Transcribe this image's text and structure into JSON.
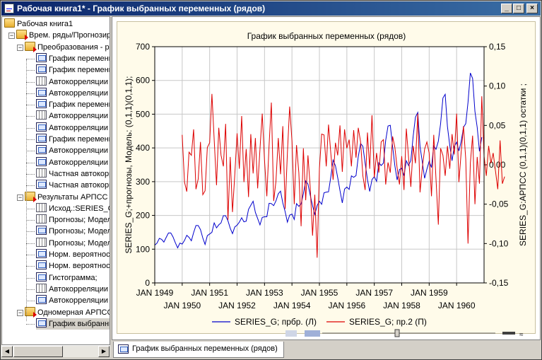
{
  "window": {
    "title": "Рабочая книга1* - График выбранных переменных (рядов)",
    "buttons": {
      "minimize": "_",
      "maximize": "□",
      "close": "×"
    }
  },
  "tree": {
    "items": [
      {
        "label": "Рабочая книга1",
        "icon": "folder-open-icon",
        "level": 0
      },
      {
        "label": "Врем. ряды/Прогнозирование",
        "icon": "folder-arrow-icon",
        "level": 1,
        "expander": "−"
      },
      {
        "label": "Преобразования - ряды",
        "icon": "folder-arrow-icon",
        "level": 2,
        "expander": "−"
      },
      {
        "label": "График переменных",
        "icon": "graph-icon",
        "level": 3
      },
      {
        "label": "График переменных",
        "icon": "graph-icon",
        "level": 3
      },
      {
        "label": "Автокорреляции",
        "icon": "table-icon",
        "level": 3
      },
      {
        "label": "Автокорреляции",
        "icon": "graph-icon",
        "level": 3
      },
      {
        "label": "График переменных",
        "icon": "graph-icon",
        "level": 3
      },
      {
        "label": "Автокорреляции",
        "icon": "table-icon",
        "level": 3
      },
      {
        "label": "Автокорреляции",
        "icon": "graph-icon",
        "level": 3
      },
      {
        "label": "График переменных",
        "icon": "graph-icon",
        "level": 3
      },
      {
        "label": "Автокорреляции",
        "icon": "graph-icon",
        "level": 3
      },
      {
        "label": "Автокорреляции",
        "icon": "graph-icon",
        "level": 3
      },
      {
        "label": "Частная автокорреляция",
        "icon": "table-icon",
        "level": 3
      },
      {
        "label": "Частная автокорреляция",
        "icon": "graph-icon",
        "level": 3
      },
      {
        "label": "Результаты АРПСС",
        "icon": "folder-arrow-icon",
        "level": 2,
        "expander": "−"
      },
      {
        "label": "Исход.:SERIES_G",
        "icon": "table-icon",
        "level": 3
      },
      {
        "label": "Прогнозы; Модель",
        "icon": "table-icon",
        "level": 3
      },
      {
        "label": "Прогнозы; Модель",
        "icon": "graph-icon",
        "level": 3
      },
      {
        "label": "Прогнозы; Модель",
        "icon": "table-icon",
        "level": 3
      },
      {
        "label": "Норм. вероятность",
        "icon": "graph-icon",
        "level": 3
      },
      {
        "label": "Норм. вероятность",
        "icon": "graph-icon",
        "level": 3
      },
      {
        "label": "Гистограмма;",
        "icon": "graph-icon",
        "level": 3
      },
      {
        "label": "Автокорреляции",
        "icon": "table-icon",
        "level": 3
      },
      {
        "label": "Автокорреляции",
        "icon": "graph-icon",
        "level": 3
      },
      {
        "label": "Одномерная АРПСС",
        "icon": "folder-arrow-icon",
        "level": 2,
        "expander": "−"
      },
      {
        "label": "График выбранных",
        "icon": "graph-icon",
        "level": 3,
        "selected": true
      }
    ]
  },
  "tab": {
    "label": "График выбранных переменных (рядов)"
  },
  "chart_data": {
    "type": "line",
    "title": "График выбранных переменных (рядов)",
    "ylabel_left": "SERIES_G;+прогнозы, Модель: (0,1,1)(0,1,1);",
    "ylabel_right": "SERIES_G:АРПСС (0,1,1)(0,1,1) остатки ;",
    "ylim_left": [
      0,
      700
    ],
    "yticks_left": [
      "0",
      "100",
      "200",
      "300",
      "400",
      "500",
      "600",
      "700"
    ],
    "ylim_right": [
      -0.15,
      0.15
    ],
    "yticks_right": [
      "-0,15",
      "-0,10",
      "-0,05",
      "0,00",
      "0,05",
      "0,10",
      "0,15"
    ],
    "x_range": [
      1949.0,
      1961.0
    ],
    "xticks_top_row": [
      "JAN 1949",
      "JAN 1951",
      "JAN 1953",
      "JAN 1955",
      "JAN 1957",
      "JAN 1959"
    ],
    "xticks_bottom_row": [
      "JAN 1950",
      "JAN 1952",
      "JAN 1954",
      "JAN 1956",
      "JAN 1958",
      "JAN 1960"
    ],
    "grid": true,
    "legend_placement": "bottom",
    "series": [
      {
        "name": "SERIES_G; прбр. (Л)",
        "axis": "left",
        "color": "#0000cc",
        "start": 1949.0,
        "step_months": 1,
        "values": [
          112,
          118,
          132,
          129,
          121,
          135,
          148,
          148,
          136,
          119,
          104,
          118,
          115,
          126,
          141,
          135,
          125,
          149,
          170,
          170,
          158,
          133,
          114,
          140,
          145,
          150,
          178,
          163,
          172,
          178,
          199,
          199,
          184,
          162,
          146,
          166,
          171,
          180,
          193,
          181,
          183,
          218,
          230,
          242,
          209,
          191,
          172,
          194,
          196,
          196,
          236,
          235,
          229,
          243,
          264,
          272,
          237,
          211,
          180,
          201,
          204,
          188,
          235,
          227,
          234,
          264,
          302,
          293,
          259,
          229,
          203,
          229,
          242,
          233,
          267,
          269,
          270,
          315,
          364,
          347,
          312,
          274,
          237,
          278,
          284,
          277,
          317,
          313,
          318,
          374,
          413,
          405,
          355,
          306,
          271,
          306,
          315,
          301,
          356,
          348,
          355,
          422,
          465,
          467,
          404,
          347,
          305,
          336,
          340,
          318,
          362,
          348,
          363,
          435,
          491,
          505,
          404,
          359,
          310,
          337,
          360,
          342,
          406,
          396,
          420,
          472,
          548,
          559,
          463,
          407,
          362,
          405,
          417,
          391,
          419,
          461,
          472,
          535,
          622,
          606,
          508,
          461,
          390,
          432
        ]
      },
      {
        "name": "SERIES_G; пр.2 (П)",
        "axis": "right",
        "color": "#dd0000",
        "start": 1950.0,
        "step_months": 1,
        "values": [
          0.038,
          -0.022,
          -0.034,
          0.016,
          0.012,
          0.045,
          -0.031,
          -0.018,
          0.029,
          -0.038,
          -0.033,
          0.022,
          0.028,
          0.09,
          0.032,
          -0.026,
          0.047,
          0.012,
          -0.002,
          0.052,
          -0.07,
          0.01,
          -0.06,
          -0.012,
          0.04,
          -0.005,
          0.062,
          -0.022,
          0.02,
          -0.041,
          0.039,
          -0.011,
          0.034,
          -0.03,
          0.02,
          0.065,
          0.006,
          -0.04,
          0.025,
          0.079,
          -0.046,
          -0.021,
          0.034,
          -0.012,
          0.049,
          -0.056,
          0.015,
          0.074,
          0.03,
          -0.05,
          0.025,
          -0.01,
          -0.078,
          0.021,
          -0.045,
          0.012,
          -0.03,
          -0.09,
          -0.038,
          -0.118,
          -0.005,
          0.039,
          0.038,
          -0.002,
          0.051,
          0.014,
          -0.019,
          0.028,
          0.012,
          0.05,
          -0.009,
          0.045,
          0.021,
          0.032,
          -0.002,
          0.044,
          0.009,
          0.047,
          0.029,
          -0.014,
          -0.032,
          0.041,
          -0.005,
          0.063,
          -0.016,
          0.015,
          -0.01,
          0.029,
          0.032,
          -0.025,
          0.003,
          -0.01,
          0.036,
          0.022,
          -0.004,
          -0.025,
          0.011,
          -0.032,
          0.046,
          0.009,
          -0.028,
          0.024,
          0.002,
          0.065,
          -0.035,
          -0.004,
          0.02,
          0.029,
          0.015,
          -0.04,
          0.038,
          -0.018,
          -0.076,
          0.021,
          0.012,
          -0.014,
          0.024,
          -0.005,
          0.039,
          0.013,
          0.065,
          -0.022,
          0.016,
          0.049,
          0.007,
          -0.1,
          0.002,
          0.037,
          -0.05,
          0.01,
          -0.024,
          0.087,
          0.011,
          -0.014,
          0.024,
          0.002,
          0.015,
          -0.008,
          -0.031,
          0.031,
          -0.024,
          -0.015
        ]
      }
    ]
  }
}
